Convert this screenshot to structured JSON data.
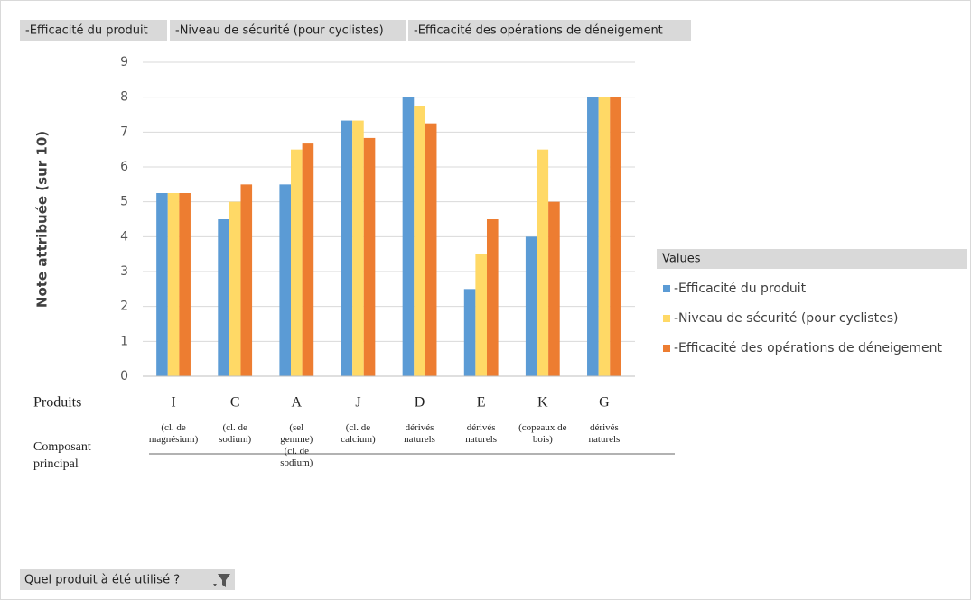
{
  "chart_data": {
    "type": "bar",
    "field_buttons": [
      "-Efficacité du produit",
      "-Niveau de sécurité (pour cyclistes)",
      "-Efficacité des opérations de déneigement"
    ],
    "y_label": "Note attribuée (sur 10)",
    "row_labels": [
      "Produits",
      "Composant principal"
    ],
    "categories": [
      "I",
      "C",
      "A",
      "J",
      "D",
      "E",
      "K",
      "G"
    ],
    "subcategories": [
      "(cl. de magnésium)",
      "(cl. de sodium)",
      "(sel gemme) (cl. de sodium)",
      "(cl. de calcium)",
      "dérivés naturels",
      "dérivés naturels",
      "(copeaux de bois)",
      "dérivés naturels"
    ],
    "series": [
      {
        "name": "-Efficacité du produit",
        "color": "#5b9bd5",
        "values": [
          5.25,
          4.5,
          5.5,
          7.33,
          8,
          2.5,
          4,
          8
        ]
      },
      {
        "name": "-Niveau de sécurité (pour cyclistes)",
        "color": "#ffd966",
        "values": [
          5.25,
          5,
          6.5,
          7.33,
          7.75,
          3.5,
          6.5,
          8
        ]
      },
      {
        "name": "-Efficacité des opérations de déneigement",
        "color": "#ed7d31",
        "values": [
          5.25,
          5.5,
          6.67,
          6.83,
          7.25,
          4.5,
          5,
          8
        ]
      }
    ],
    "ylim": [
      0,
      9
    ],
    "yticks": [
      0,
      1,
      2,
      3,
      4,
      5,
      6,
      7,
      8,
      9
    ],
    "grid": true,
    "legend_title": "Values",
    "legend_position": "right",
    "filter_button": "Quel produit à été utilisé ?"
  }
}
